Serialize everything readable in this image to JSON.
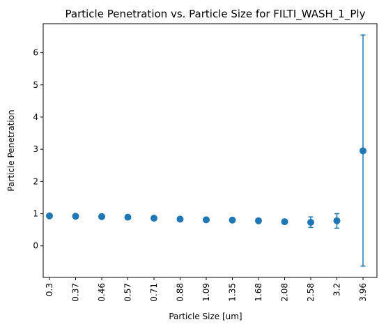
{
  "chart_data": {
    "type": "scatter",
    "title": "Particle Penetration vs. Particle Size for FILTI_WASH_1_Ply",
    "xlabel": "Particle Size [um]",
    "ylabel": "Particle Penetration",
    "categories": [
      "0.3",
      "0.37",
      "0.46",
      "0.57",
      "0.71",
      "0.88",
      "1.09",
      "1.35",
      "1.68",
      "2.08",
      "2.58",
      "3.2",
      "3.96"
    ],
    "values": [
      0.93,
      0.92,
      0.91,
      0.89,
      0.86,
      0.83,
      0.81,
      0.8,
      0.78,
      0.75,
      0.73,
      0.78,
      2.95
    ],
    "error_low": [
      0.92,
      0.91,
      0.9,
      0.88,
      0.85,
      0.82,
      0.8,
      0.79,
      0.77,
      0.74,
      0.57,
      0.55,
      -0.63
    ],
    "error_high": [
      0.94,
      0.93,
      0.92,
      0.9,
      0.87,
      0.84,
      0.82,
      0.81,
      0.79,
      0.76,
      0.9,
      1.0,
      6.55
    ],
    "yticks": [
      "0",
      "1",
      "2",
      "3",
      "4",
      "5",
      "6"
    ],
    "ylim": [
      -0.98,
      6.9
    ],
    "grid": false,
    "legend": "none",
    "color": "#1f77b4"
  }
}
